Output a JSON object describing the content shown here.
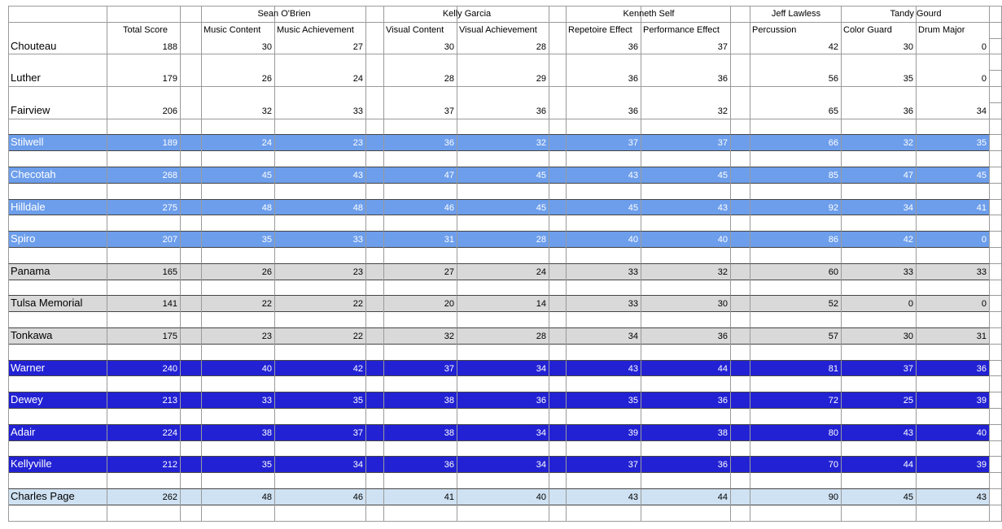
{
  "header": {
    "judges": [
      "Sean O'Brien",
      "Kelly Garcia",
      "Kenneth Self",
      "Jeff Lawless",
      "Tandy Gourd"
    ],
    "columns": [
      "Total Score",
      "Music Content",
      "Music Achievement",
      "Visual Content",
      "Visual Achievement",
      "Repetoire Effect",
      "Performance Effect",
      "Percussion",
      "Color Guard",
      "Drum Major"
    ]
  },
  "table": {
    "rows": [
      {
        "school": "Chouteau",
        "fill": "#ffffff",
        "text_color": "#000000",
        "scores": [
          188,
          30,
          27,
          30,
          28,
          36,
          37,
          42,
          30,
          0
        ]
      },
      {
        "school": "Luther",
        "fill": "#ffffff",
        "text_color": "#000000",
        "scores": [
          179,
          26,
          24,
          28,
          29,
          36,
          36,
          56,
          35,
          0
        ]
      },
      {
        "school": "Fairview",
        "fill": "#ffffff",
        "text_color": "#000000",
        "scores": [
          206,
          32,
          33,
          37,
          36,
          36,
          32,
          65,
          36,
          34
        ]
      },
      {
        "school": "Stilwell",
        "fill": "#6d9eeb",
        "text_color": "#ffffff",
        "scores": [
          189,
          24,
          23,
          36,
          32,
          37,
          37,
          66,
          32,
          35
        ]
      },
      {
        "school": "Checotah",
        "fill": "#6d9eeb",
        "text_color": "#ffffff",
        "scores": [
          268,
          45,
          43,
          47,
          45,
          43,
          45,
          85,
          47,
          45
        ]
      },
      {
        "school": "Hilldale",
        "fill": "#6d9eeb",
        "text_color": "#ffffff",
        "scores": [
          275,
          48,
          48,
          46,
          45,
          45,
          43,
          92,
          34,
          41
        ]
      },
      {
        "school": "Spiro",
        "fill": "#6d9eeb",
        "text_color": "#ffffff",
        "scores": [
          207,
          35,
          33,
          31,
          28,
          40,
          40,
          86,
          42,
          0
        ]
      },
      {
        "school": "Panama",
        "fill": "#d9d9d9",
        "text_color": "#000000",
        "scores": [
          165,
          26,
          23,
          27,
          24,
          33,
          32,
          60,
          33,
          33
        ]
      },
      {
        "school": "Tulsa Memorial",
        "fill": "#d9d9d9",
        "text_color": "#000000",
        "scores": [
          141,
          22,
          22,
          20,
          14,
          33,
          30,
          52,
          0,
          0
        ]
      },
      {
        "school": "Tonkawa",
        "fill": "#d9d9d9",
        "text_color": "#000000",
        "scores": [
          175,
          23,
          22,
          32,
          28,
          34,
          36,
          57,
          30,
          31
        ]
      },
      {
        "school": "Warner",
        "fill": "#2222d4",
        "text_color": "#ffffff",
        "scores": [
          240,
          40,
          42,
          37,
          34,
          43,
          44,
          81,
          37,
          36
        ]
      },
      {
        "school": "Dewey",
        "fill": "#2222d4",
        "text_color": "#ffffff",
        "scores": [
          213,
          33,
          35,
          38,
          36,
          35,
          36,
          72,
          25,
          39
        ]
      },
      {
        "school": "Adair",
        "fill": "#2222d4",
        "text_color": "#ffffff",
        "scores": [
          224,
          38,
          37,
          38,
          34,
          39,
          38,
          80,
          43,
          40
        ]
      },
      {
        "school": "Kellyville",
        "fill": "#2222d4",
        "text_color": "#ffffff",
        "scores": [
          212,
          35,
          34,
          36,
          34,
          37,
          36,
          70,
          44,
          39
        ]
      },
      {
        "school": "Charles Page",
        "fill": "#cfe2f3",
        "text_color": "#000000",
        "scores": [
          262,
          48,
          46,
          41,
          40,
          43,
          44,
          90,
          45,
          43
        ]
      }
    ]
  }
}
